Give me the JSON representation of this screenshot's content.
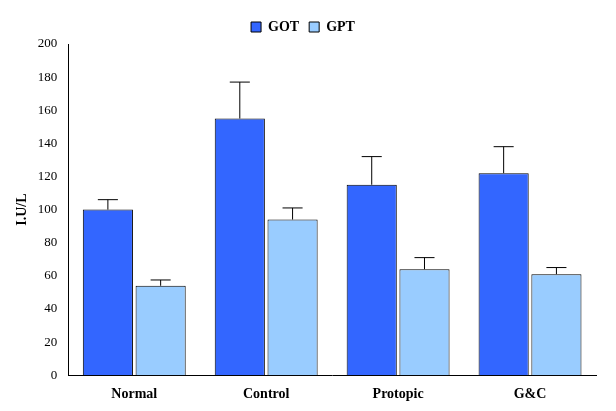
{
  "chart_data": {
    "type": "bar",
    "categories": [
      "Normal",
      "Control",
      "Protopic",
      "G&C"
    ],
    "y_label": "I.U/L",
    "series": [
      {
        "name": "GOT",
        "color": "#3366ff",
        "values": [
          100,
          155,
          115,
          122
        ],
        "errors": [
          6,
          22,
          17,
          16
        ]
      },
      {
        "name": "GPT",
        "color": "#99ccff",
        "values": [
          54,
          94,
          64,
          61
        ],
        "errors": [
          3.5,
          7,
          7,
          4
        ]
      }
    ],
    "ylim": [
      0,
      200
    ],
    "yticks": [
      0,
      20,
      40,
      60,
      80,
      100,
      120,
      140,
      160,
      180,
      200
    ],
    "grid": false,
    "legend": "top"
  }
}
